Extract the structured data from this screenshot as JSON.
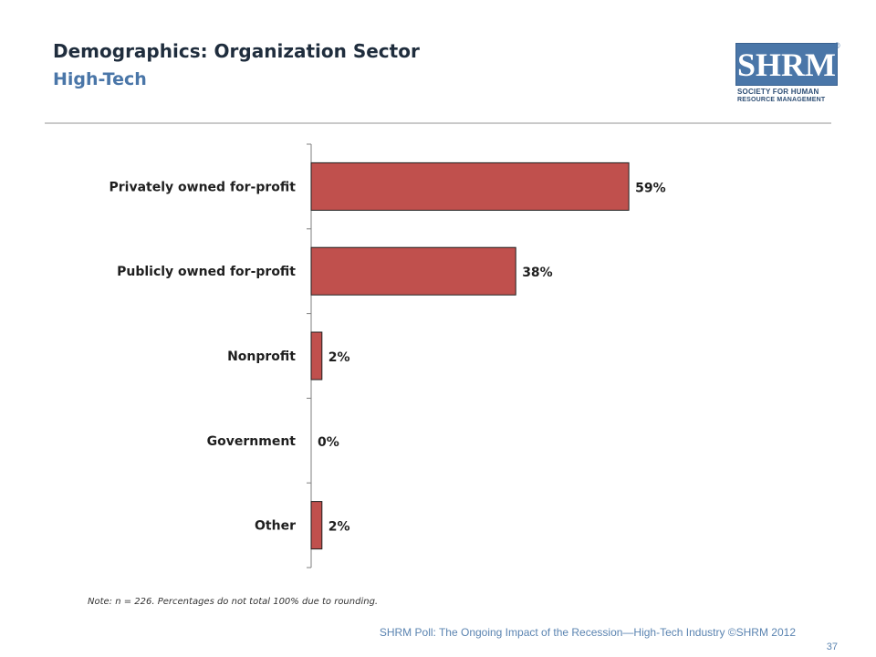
{
  "header": {
    "title": "Demographics: Organization Sector",
    "subtitle": "High-Tech",
    "subtitle_color": "#4a76a8"
  },
  "logo": {
    "letters": "SHRM",
    "registered": "®",
    "line1": "SOCIETY FOR HUMAN",
    "line2": "RESOURCE MANAGEMENT"
  },
  "chart_data": {
    "type": "bar",
    "orientation": "horizontal",
    "categories": [
      "Privately owned for-profit",
      "Publicly owned for-profit",
      "Nonprofit",
      "Government",
      "Other"
    ],
    "values": [
      59,
      38,
      2,
      0,
      2
    ],
    "value_labels": [
      "59%",
      "38%",
      "2%",
      "0%",
      "2%"
    ],
    "xlim": [
      0,
      100
    ],
    "bar_color": "#c0504d",
    "grid": false
  },
  "note": "Note: n = 226. Percentages do not total 100% due to rounding.",
  "footer": {
    "text": "SHRM Poll: The Ongoing Impact of the Recession—High-Tech Industry ©SHRM 2012",
    "page_number": "37"
  }
}
